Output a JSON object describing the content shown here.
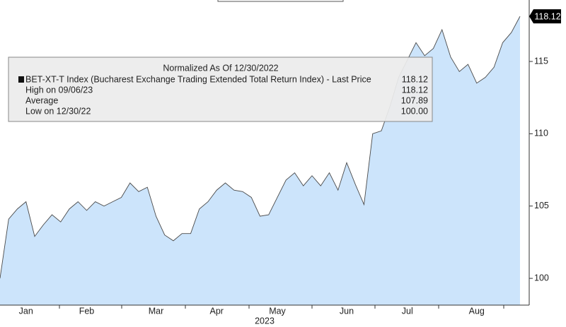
{
  "chart_data": {
    "type": "area",
    "legend_title": "Normalized As Of 12/30/2022",
    "x_label": "2023",
    "categories": [
      null,
      null,
      null,
      "Jan",
      null,
      null,
      null,
      null,
      null,
      null,
      "Feb",
      null,
      null,
      null,
      null,
      null,
      null,
      null,
      "Mar",
      null,
      null,
      null,
      null,
      null,
      null,
      "Apr",
      null,
      null,
      null,
      null,
      null,
      null,
      "May",
      null,
      null,
      null,
      null,
      null,
      null,
      null,
      "Jun",
      null,
      null,
      null,
      null,
      null,
      null,
      "Jul",
      null,
      null,
      null,
      null,
      null,
      null,
      null,
      "Aug",
      null,
      null,
      null,
      null,
      null
    ],
    "series": [
      {
        "name": "BET-XT-T Index (Bucharest Exchange Trading Extended Total Return Index) - Last Price",
        "color": "#cce4fb",
        "line_color": "#4a4a4a",
        "values": [
          100,
          104.1,
          104.8,
          105.3,
          102.9,
          103.7,
          104.4,
          103.9,
          104.8,
          105.3,
          104.7,
          105.3,
          105.0,
          105.3,
          105.6,
          106.6,
          106.0,
          106.3,
          104.3,
          103.0,
          102.6,
          103.1,
          103.1,
          104.8,
          105.3,
          106.1,
          106.6,
          106.1,
          106.0,
          105.6,
          104.3,
          104.4,
          105.6,
          106.8,
          107.3,
          106.4,
          107.1,
          106.4,
          107.3,
          106.1,
          108.0,
          106.5,
          105.1,
          110.0,
          110.2,
          111.9,
          113.9,
          115.1,
          116.3,
          115.4,
          115.9,
          117.2,
          115.3,
          114.3,
          114.8,
          113.5,
          113.9,
          114.6,
          116.3,
          117.0,
          118.12
        ]
      }
    ],
    "stats": [
      {
        "name": "High on 09/06/23",
        "value": 118.12
      },
      {
        "name": "Average",
        "value": 107.89
      },
      {
        "name": "Low on 12/30/22",
        "value": {
          "value": 100,
          "label": "100.00"
        }
      }
    ],
    "ylim": [
      98.15,
      119.25
    ],
    "yticks": [
      100,
      105,
      110,
      115
    ],
    "y_axis_side": "right"
  }
}
